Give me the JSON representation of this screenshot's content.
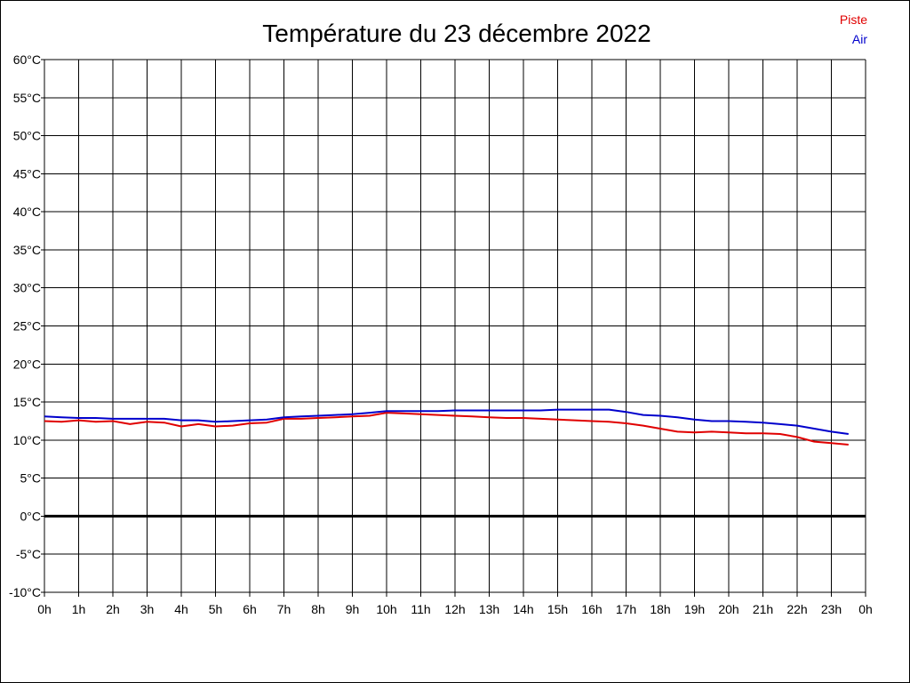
{
  "chart_data": {
    "type": "line",
    "title": "Température du 23 décembre 2022",
    "xlabel": "",
    "ylabel": "",
    "x_ticks": [
      "0h",
      "1h",
      "2h",
      "3h",
      "4h",
      "5h",
      "6h",
      "7h",
      "8h",
      "9h",
      "10h",
      "11h",
      "12h",
      "13h",
      "14h",
      "15h",
      "16h",
      "17h",
      "18h",
      "19h",
      "20h",
      "21h",
      "22h",
      "23h",
      "0h"
    ],
    "y_ticks": [
      "60°C",
      "55°C",
      "50°C",
      "45°C",
      "40°C",
      "35°C",
      "30°C",
      "25°C",
      "20°C",
      "15°C",
      "10°C",
      "5°C",
      "0°C",
      "-5°C",
      "-10°C"
    ],
    "xlim": [
      0,
      24
    ],
    "ylim": [
      -10,
      60
    ],
    "grid": true,
    "zero_line": true,
    "legend_position": "top-right",
    "series": [
      {
        "name": "Piste",
        "color": "#e00000",
        "x": [
          0,
          0.5,
          1,
          1.5,
          2,
          2.5,
          3,
          3.5,
          4,
          4.5,
          5,
          5.5,
          6,
          6.5,
          7,
          7.5,
          8,
          8.5,
          9,
          9.5,
          10,
          10.5,
          11,
          11.5,
          12,
          12.5,
          13,
          13.5,
          14,
          14.5,
          15,
          15.5,
          16,
          16.5,
          17,
          17.5,
          18,
          18.5,
          19,
          19.5,
          20,
          20.5,
          21,
          21.5,
          22,
          22.5,
          23,
          23.5
        ],
        "values": [
          12.5,
          12.4,
          12.6,
          12.4,
          12.5,
          12.1,
          12.4,
          12.3,
          11.8,
          12.1,
          11.8,
          11.9,
          12.2,
          12.3,
          12.8,
          12.8,
          12.9,
          13.0,
          13.1,
          13.2,
          13.6,
          13.5,
          13.4,
          13.3,
          13.2,
          13.1,
          13.0,
          12.9,
          12.9,
          12.8,
          12.7,
          12.6,
          12.5,
          12.4,
          12.2,
          11.9,
          11.5,
          11.1,
          11.0,
          11.1,
          11.0,
          10.9,
          10.9,
          10.8,
          10.4,
          9.8,
          9.6,
          9.4
        ]
      },
      {
        "name": "Air",
        "color": "#0000cc",
        "x": [
          0,
          0.5,
          1,
          1.5,
          2,
          2.5,
          3,
          3.5,
          4,
          4.5,
          5,
          5.5,
          6,
          6.5,
          7,
          7.5,
          8,
          8.5,
          9,
          9.5,
          10,
          10.5,
          11,
          11.5,
          12,
          12.5,
          13,
          13.5,
          14,
          14.5,
          15,
          15.5,
          16,
          16.5,
          17,
          17.5,
          18,
          18.5,
          19,
          19.5,
          20,
          20.5,
          21,
          21.5,
          22,
          22.5,
          23,
          23.5
        ],
        "values": [
          13.1,
          13.0,
          12.9,
          12.9,
          12.8,
          12.8,
          12.8,
          12.8,
          12.6,
          12.6,
          12.4,
          12.5,
          12.6,
          12.7,
          13.0,
          13.1,
          13.2,
          13.3,
          13.4,
          13.6,
          13.8,
          13.8,
          13.8,
          13.8,
          13.9,
          13.9,
          13.9,
          13.9,
          13.9,
          13.9,
          14.0,
          14.0,
          14.0,
          14.0,
          13.7,
          13.3,
          13.2,
          13.0,
          12.7,
          12.5,
          12.5,
          12.4,
          12.3,
          12.1,
          11.9,
          11.5,
          11.1,
          10.8
        ]
      }
    ]
  }
}
